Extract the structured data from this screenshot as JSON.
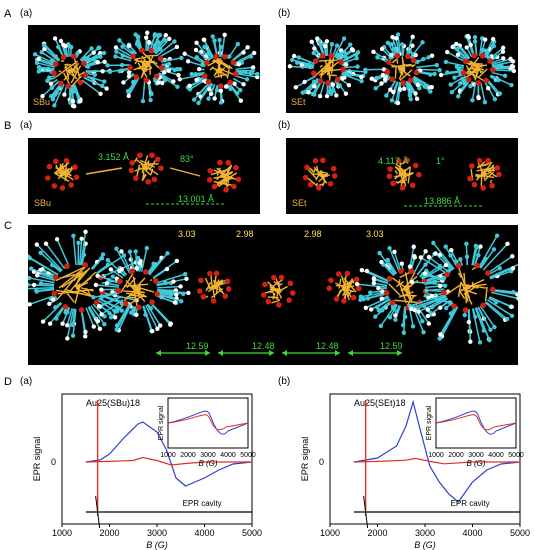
{
  "panels": {
    "A": {
      "letter": "A",
      "sub_a": "(a)",
      "sub_b": "(b)",
      "ligand_a": "SBu",
      "ligand_b": "SEt"
    },
    "B": {
      "letter": "B",
      "sub_a": "(a)",
      "sub_b": "(b)",
      "ligand_a": "SBu",
      "ligand_b": "SEt",
      "dist_a1": "3.152 Å",
      "angle_a": "83°",
      "dist_a2": "13.001 Å",
      "dist_b1": "4.117 Å",
      "angle_b": "1°",
      "dist_b2": "13.886 Å"
    },
    "C": {
      "letter": "C",
      "top_labels": [
        "3.03",
        "2.98",
        "2.98",
        "3.03"
      ],
      "bottom_labels": [
        "12.59",
        "12.48",
        "12.48",
        "12.59"
      ]
    },
    "D": {
      "letter": "D",
      "sub_a": "(a)",
      "sub_b": "(b)",
      "title_a": "Au25(SBu)18",
      "title_b": "Au25(SEt)18",
      "ylabel": "EPR signal",
      "inset_ylabel": "EPR signal",
      "xlabel": "B (G)",
      "cavity_label": "EPR cavity",
      "zero_label": "0",
      "xticks": [
        "1000",
        "2000",
        "3000",
        "4000",
        "5000"
      ],
      "inset_xticks": [
        "1000",
        "2000",
        "3000",
        "4000",
        "5000"
      ]
    }
  },
  "colors": {
    "background_dark": "#000000",
    "gold": "#f2b430",
    "sulfur": "#ffd84a",
    "oxygen_red": "#d42010",
    "carbon_cyan": "#40c8d8",
    "hydrogen_white": "#ffffff",
    "measure_green": "#3ddc3d",
    "curve_blue": "#2b3fd6",
    "curve_red": "#e03020",
    "curve_black": "#000000"
  },
  "chart_data": [
    {
      "type": "line",
      "title": "Au25(SBu)18",
      "xlabel": "B (G)",
      "ylabel": "EPR signal",
      "xlim": [
        500,
        5000
      ],
      "series": [
        {
          "name": "",
          "color": "blue",
          "x": [
            1500,
            1800,
            2000,
            2300,
            2600,
            2700,
            3000,
            3200,
            3400,
            3600,
            3800,
            4000,
            4300,
            4600,
            5000
          ],
          "y": [
            0,
            0.05,
            0.2,
            0.6,
            0.95,
            1.0,
            0.75,
            0.3,
            -0.4,
            -0.6,
            -0.5,
            -0.4,
            -0.2,
            -0.05,
            0
          ]
        },
        {
          "name": "",
          "color": "red",
          "x": [
            1500,
            2000,
            2500,
            2700,
            3000,
            3300,
            3600,
            4000,
            4500,
            5000
          ],
          "y": [
            0,
            0.02,
            0.05,
            0.15,
            0.05,
            -0.1,
            -0.05,
            0,
            0,
            0
          ]
        },
        {
          "name": "EPR cavity",
          "color": "black",
          "x": [
            1500,
            2000,
            3000,
            4000,
            5000
          ],
          "y": [
            0,
            0,
            0,
            0,
            0
          ]
        }
      ]
    },
    {
      "type": "line",
      "title": "Au25(SEt)18",
      "xlabel": "B (G)",
      "ylabel": "EPR signal",
      "xlim": [
        500,
        5000
      ],
      "series": [
        {
          "name": "",
          "color": "blue",
          "x": [
            1500,
            2000,
            2400,
            2600,
            2750,
            2900,
            3100,
            3300,
            3500,
            3700,
            4000,
            4300,
            4600,
            5000
          ],
          "y": [
            0,
            0.1,
            0.4,
            0.9,
            1.5,
            0.8,
            -0.1,
            -0.5,
            -0.8,
            -1.0,
            -0.5,
            -0.2,
            -0.05,
            0
          ]
        },
        {
          "name": "",
          "color": "red",
          "x": [
            1500,
            2000,
            2600,
            2800,
            3100,
            3400,
            4000,
            5000
          ],
          "y": [
            0,
            0.02,
            0.06,
            0.12,
            0.02,
            -0.06,
            0,
            0
          ]
        },
        {
          "name": "EPR cavity",
          "color": "black",
          "x": [
            1500,
            2000,
            3000,
            4000,
            5000
          ],
          "y": [
            0,
            0,
            0,
            0,
            0
          ]
        }
      ]
    }
  ]
}
